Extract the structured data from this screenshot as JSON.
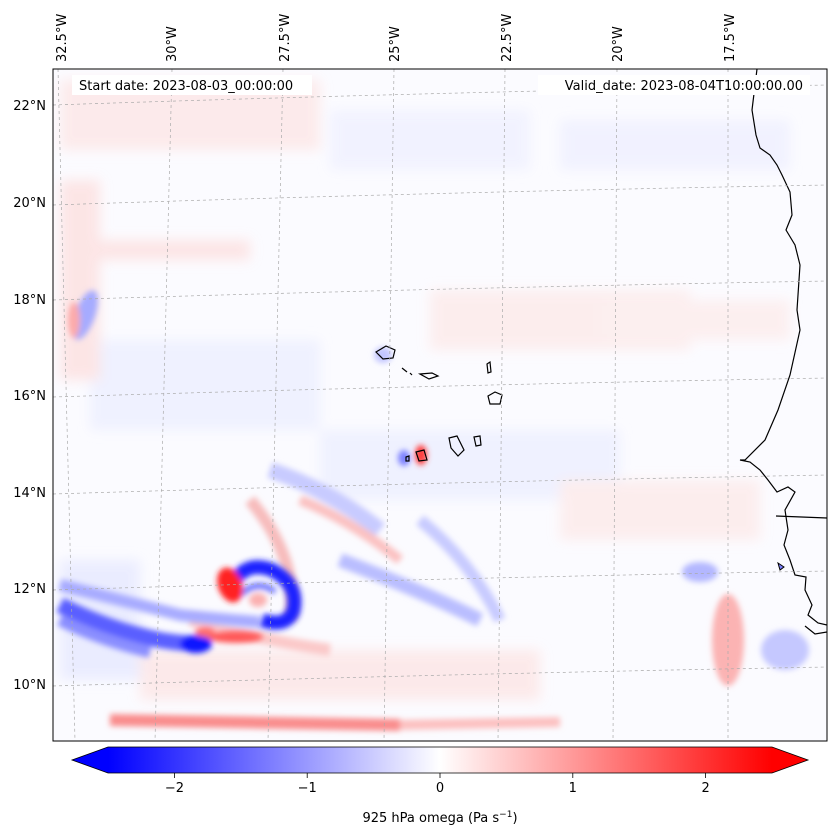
{
  "header": {
    "start_label": "Start date: 2023-08-03_00:00:00",
    "valid_label": "Valid_date: 2023-08-04T10:00:00.00"
  },
  "map": {
    "region": "Eastern Atlantic / Cape Verde / West Africa coast",
    "lon_labels": [
      "32.5°W",
      "30°W",
      "27.5°W",
      "25°W",
      "22.5°W",
      "20°W",
      "17.5°W"
    ],
    "lat_labels": [
      "22°N",
      "20°N",
      "18°N",
      "16°N",
      "14°N",
      "12°N",
      "10°N"
    ],
    "features": [
      {
        "name": "cyclonic-vortex",
        "lon": -28.2,
        "lat": 11.9,
        "sign": "mixed"
      },
      {
        "name": "negative-band-south",
        "lon": -31.0,
        "lat": 11.0,
        "sign": "negative"
      },
      {
        "name": "island-dipole",
        "lon": -24.2,
        "lat": 14.8,
        "sign": "mixed"
      },
      {
        "name": "positive-streak-bottom",
        "lon": -27.0,
        "lat": 9.3,
        "sign": "positive"
      },
      {
        "name": "coastal-positive",
        "lon": -17.8,
        "lat": 10.8,
        "sign": "positive"
      }
    ]
  },
  "colorbar": {
    "ticks": [
      "−2",
      "−1",
      "0",
      "1",
      "2"
    ],
    "tick_values": [
      -2,
      -1,
      0,
      1,
      2
    ],
    "vmin": -2.5,
    "vmax": 2.5,
    "label": "925 hPa omega (Pa s",
    "label_sup": "−1",
    "label_end": ")",
    "colors": {
      "low": "#0000ff",
      "mid": "#ffffff",
      "high": "#ff0000"
    }
  }
}
